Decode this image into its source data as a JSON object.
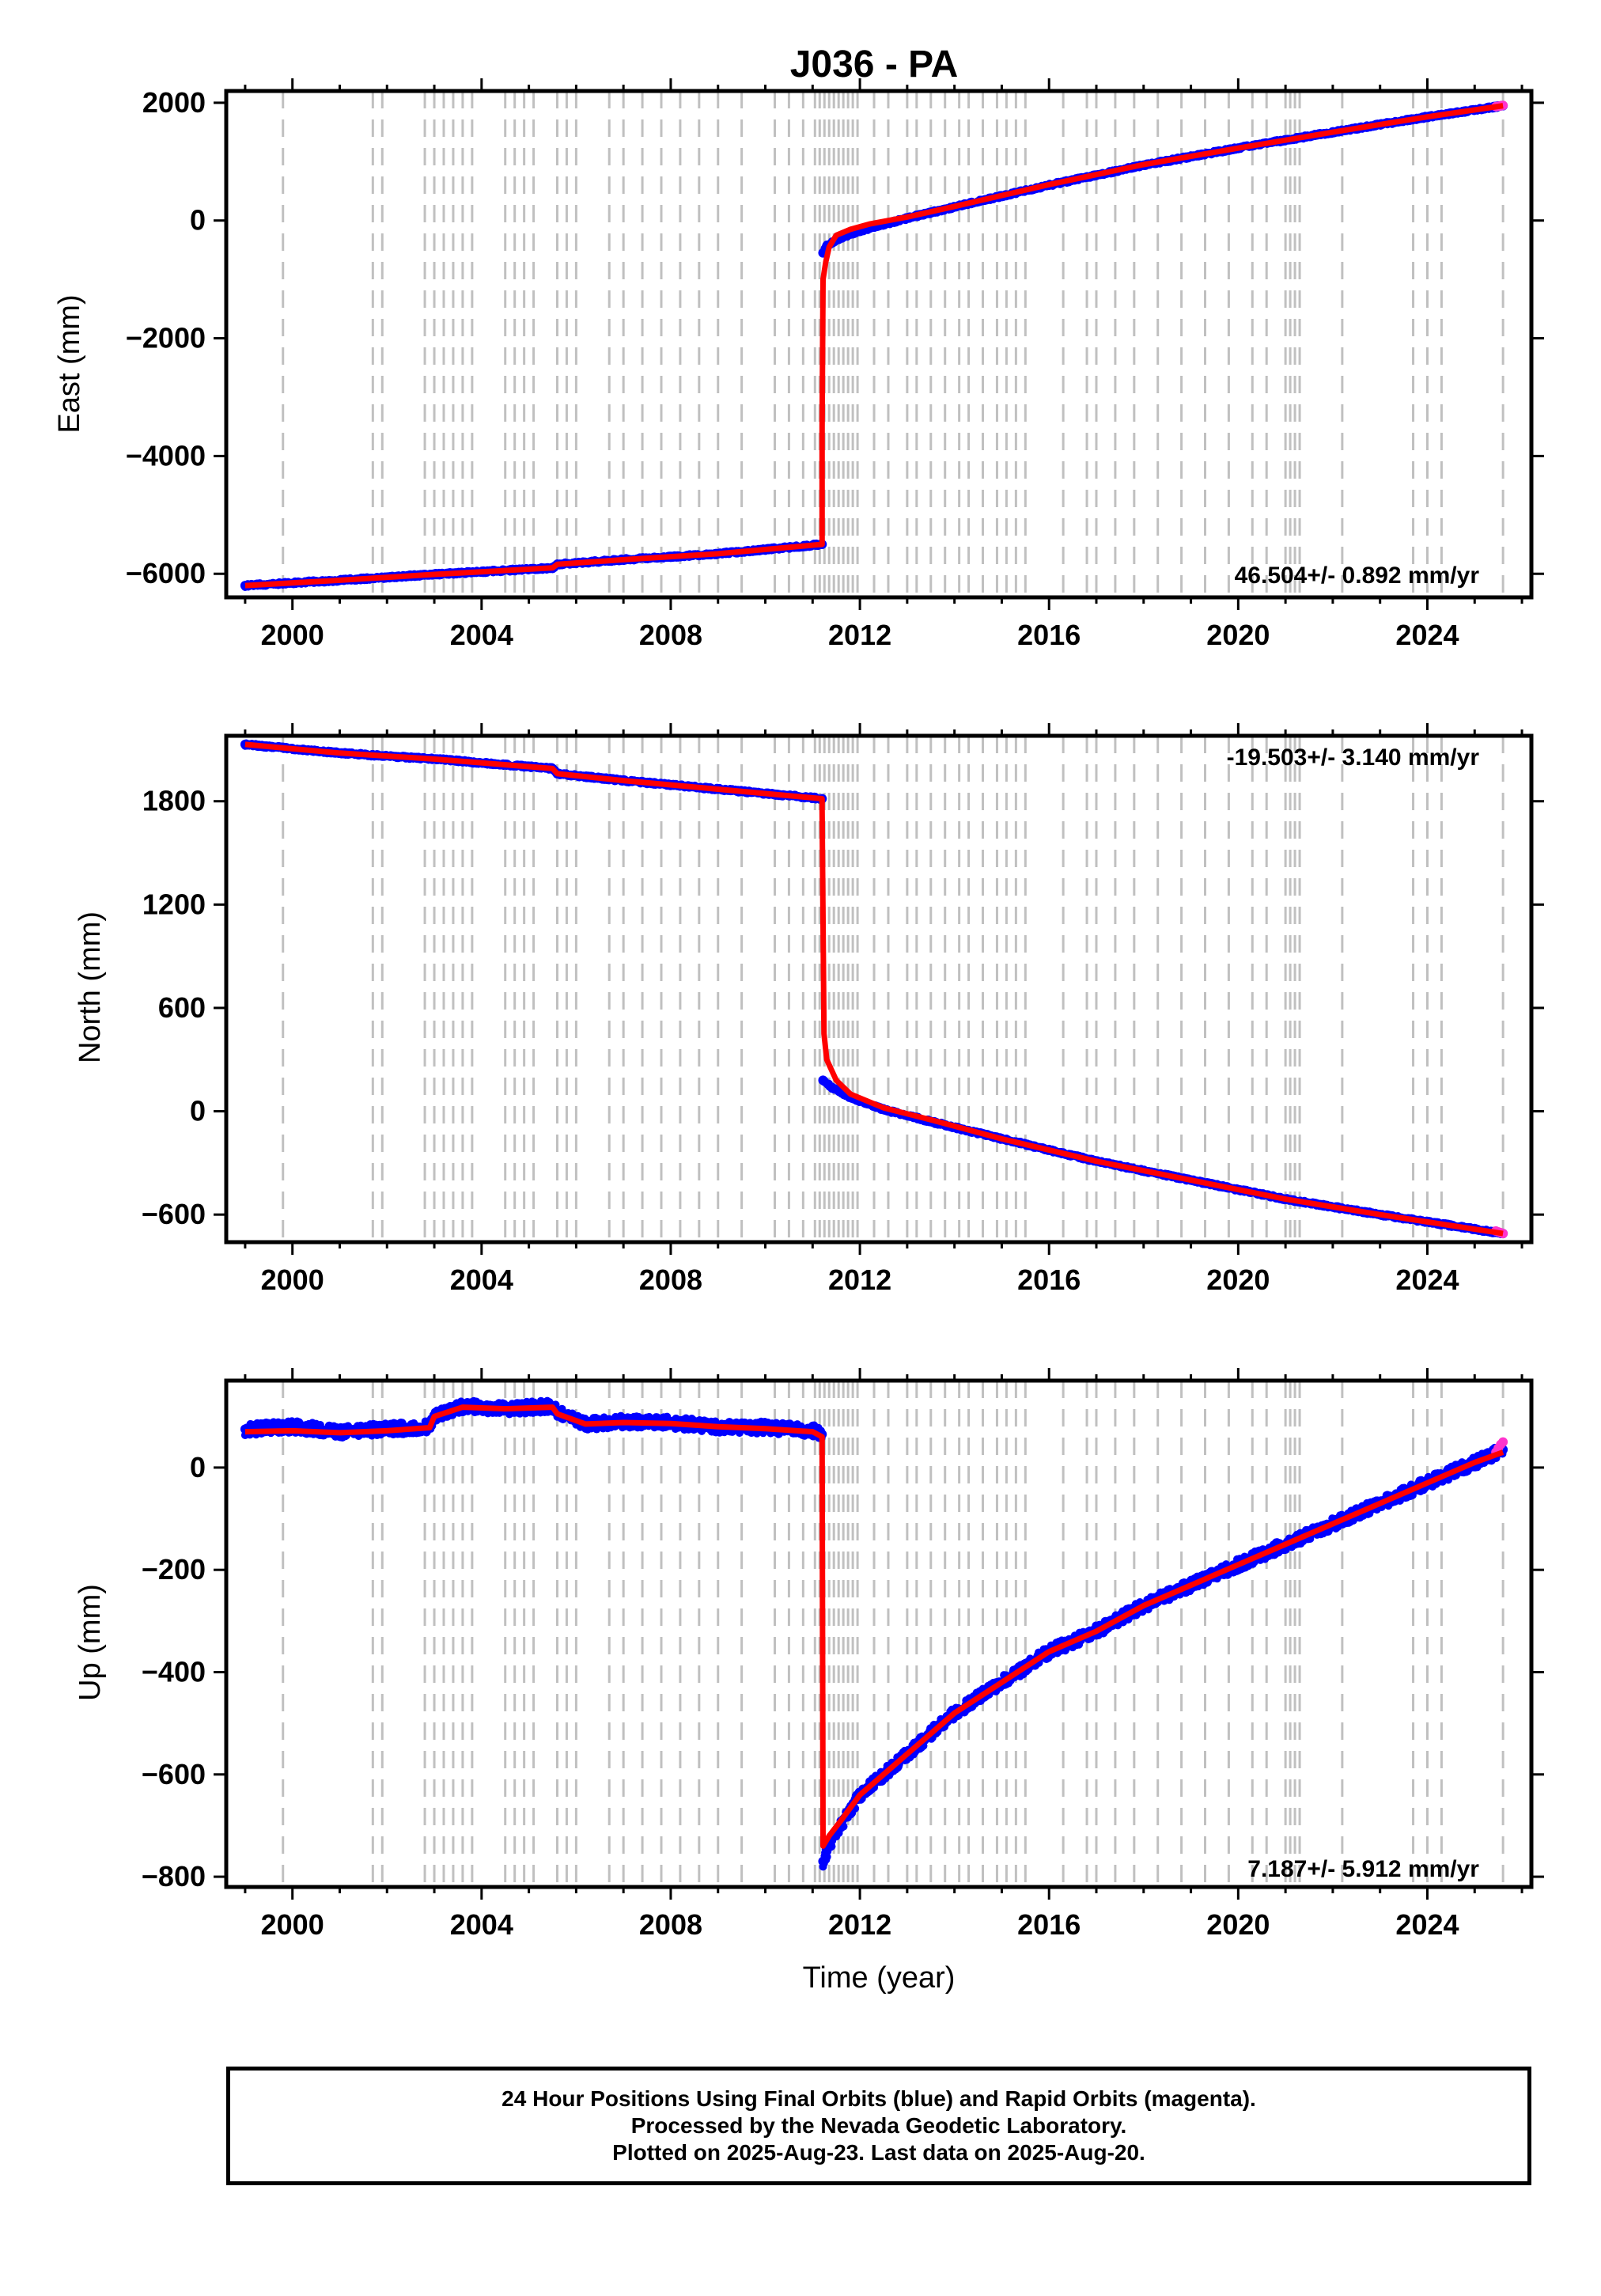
{
  "title": "J036 - PA",
  "xlabel": "Time (year)",
  "colors": {
    "final": "#0000ff",
    "rapid": "#ff33cc",
    "model": "#ff0000",
    "event_lines": "#c0c0c0",
    "axis": "#000000"
  },
  "footer": {
    "line1": "24 Hour Positions Using Final Orbits (blue) and Rapid Orbits (magenta).",
    "line2": "Processed by the Nevada Geodetic Laboratory.",
    "line3": "Plotted on 2025-Aug-23. Last data on 2025-Aug-20."
  },
  "chart_data": [
    {
      "type": "scatter",
      "ylabel": "East (mm)",
      "rate_label": "46.504+/- 0.892 mm/yr",
      "rate_position": "bottom-right",
      "xlim": [
        1998.6,
        2026.2
      ],
      "ylim": [
        -6400,
        2200
      ],
      "xticks": [
        2000,
        2004,
        2008,
        2012,
        2016,
        2020,
        2024
      ],
      "yticks": [
        -6000,
        -4000,
        -2000,
        0,
        2000
      ],
      "ytick_labels": [
        "−6000",
        "−4000",
        "−2000",
        "0",
        "2000"
      ],
      "series": [
        {
          "style": "points",
          "color": "#0000ff",
          "x": [
            1999.0,
            2001.0,
            2003.0,
            2005.5,
            2005.6,
            2007.0,
            2009.0,
            2011.2,
            2011.22,
            2011.3,
            2011.5,
            2011.8,
            2012.2,
            2013.0,
            2014.0,
            2016.0,
            2018.0,
            2020.0,
            2022.0,
            2024.0,
            2025.6
          ],
          "y": [
            -6200,
            -6110,
            -6010,
            -5900,
            -5840,
            -5760,
            -5660,
            -5500,
            -550,
            -430,
            -330,
            -230,
            -130,
            40,
            230,
            600,
            940,
            1230,
            1500,
            1760,
            1950
          ]
        },
        {
          "style": "points",
          "color": "#ff33cc",
          "x": [
            2025.45,
            2025.5,
            2025.55,
            2025.6
          ],
          "y": [
            1935,
            1942,
            1948,
            1955
          ]
        },
        {
          "style": "line",
          "color": "#ff0000",
          "x": [
            1999.0,
            2001.0,
            2003.0,
            2005.5,
            2005.6,
            2007.0,
            2009.0,
            2011.2,
            2011.2,
            2011.22,
            2011.28,
            2011.35,
            2011.5,
            2011.8,
            2012.2,
            2013.0,
            2014.0,
            2016.0,
            2018.0,
            2020.0,
            2022.0,
            2024.0,
            2025.6
          ],
          "y": [
            -6200,
            -6110,
            -6010,
            -5900,
            -5840,
            -5760,
            -5660,
            -5500,
            -3500,
            -1000,
            -700,
            -450,
            -250,
            -150,
            -60,
            60,
            240,
            610,
            950,
            1230,
            1500,
            1760,
            1950
          ]
        }
      ]
    },
    {
      "type": "scatter",
      "ylabel": "North (mm)",
      "rate_label": "-19.503+/- 3.140 mm/yr",
      "rate_position": "top-right",
      "xlim": [
        1998.6,
        2026.2
      ],
      "ylim": [
        -760,
        2180
      ],
      "xticks": [
        2000,
        2004,
        2008,
        2012,
        2016,
        2020,
        2024
      ],
      "yticks": [
        -600,
        0,
        600,
        1200,
        1800
      ],
      "ytick_labels": [
        "−600",
        "0",
        "600",
        "1200",
        "1800"
      ],
      "series": [
        {
          "style": "points",
          "color": "#0000ff",
          "x": [
            1999.0,
            2001.0,
            2003.0,
            2005.5,
            2005.6,
            2007.0,
            2009.0,
            2011.2,
            2011.22,
            2011.4,
            2011.8,
            2012.5,
            2013.5,
            2015.0,
            2017.0,
            2019.0,
            2021.0,
            2023.0,
            2025.6
          ],
          "y": [
            2130,
            2080,
            2045,
            1990,
            1960,
            1920,
            1870,
            1815,
            180,
            140,
            80,
            10,
            -60,
            -160,
            -290,
            -400,
            -510,
            -600,
            -710
          ]
        },
        {
          "style": "points",
          "color": "#ff33cc",
          "x": [
            2025.45,
            2025.5,
            2025.55,
            2025.6
          ],
          "y": [
            -695,
            -700,
            -705,
            -710
          ]
        },
        {
          "style": "line",
          "color": "#ff0000",
          "x": [
            1999.0,
            2001.0,
            2003.0,
            2005.5,
            2005.6,
            2007.0,
            2009.0,
            2011.2,
            2011.2,
            2011.24,
            2011.3,
            2011.5,
            2011.8,
            2012.5,
            2013.5,
            2015.0,
            2017.0,
            2019.0,
            2021.0,
            2023.0,
            2025.6
          ],
          "y": [
            2130,
            2080,
            2045,
            1990,
            1960,
            1920,
            1870,
            1815,
            1750,
            450,
            300,
            180,
            100,
            20,
            -50,
            -160,
            -290,
            -400,
            -510,
            -600,
            -710
          ]
        }
      ]
    },
    {
      "type": "scatter",
      "ylabel": "Up (mm)",
      "rate_label": "7.187+/- 5.912 mm/yr",
      "rate_position": "bottom-right",
      "xlim": [
        1998.6,
        2026.2
      ],
      "ylim": [
        -820,
        170
      ],
      "xticks": [
        2000,
        2004,
        2008,
        2012,
        2016,
        2020,
        2024
      ],
      "yticks": [
        -800,
        -600,
        -400,
        -200,
        0
      ],
      "ytick_labels": [
        "−800",
        "−600",
        "−400",
        "−200",
        "0"
      ],
      "series": [
        {
          "style": "points",
          "color": "#0000ff",
          "x": [
            1999.0,
            2000.0,
            2001.0,
            2002.0,
            2002.9,
            2003.0,
            2003.6,
            2004.5,
            2005.5,
            2005.6,
            2006.2,
            2007.0,
            2008.0,
            2009.0,
            2010.0,
            2011.0,
            2011.2,
            2011.22,
            2011.35,
            2011.6,
            2012.0,
            2012.5,
            2013.0,
            2013.5,
            2014.0,
            2014.5,
            2015.0,
            2016.0,
            2017.0,
            2018.0,
            2019.0,
            2020.0,
            2021.0,
            2022.0,
            2023.0,
            2024.0,
            2025.0,
            2025.6
          ],
          "y": [
            75,
            80,
            70,
            75,
            80,
            100,
            120,
            115,
            120,
            110,
            85,
            90,
            88,
            80,
            78,
            72,
            65,
            -770,
            -740,
            -700,
            -640,
            -600,
            -560,
            -520,
            -480,
            -450,
            -420,
            -360,
            -320,
            -270,
            -230,
            -190,
            -150,
            -110,
            -70,
            -30,
            10,
            35
          ]
        },
        {
          "style": "points",
          "color": "#ff33cc",
          "x": [
            2025.45,
            2025.5,
            2025.55,
            2025.6
          ],
          "y": [
            30,
            38,
            45,
            50
          ]
        },
        {
          "style": "line",
          "color": "#ff0000",
          "x": [
            1999.0,
            2000.0,
            2001.0,
            2002.0,
            2002.9,
            2003.0,
            2003.6,
            2004.5,
            2005.5,
            2005.6,
            2006.2,
            2007.0,
            2008.0,
            2009.0,
            2010.0,
            2011.0,
            2011.2,
            2011.22,
            2011.35,
            2011.6,
            2012.0,
            2012.5,
            2013.0,
            2013.5,
            2014.0,
            2014.5,
            2015.0,
            2016.0,
            2017.0,
            2018.0,
            2019.0,
            2020.0,
            2021.0,
            2022.0,
            2023.0,
            2024.0,
            2025.0,
            2025.6
          ],
          "y": [
            70,
            72,
            68,
            72,
            78,
            100,
            118,
            115,
            118,
            105,
            85,
            88,
            86,
            80,
            76,
            70,
            60,
            -740,
            -720,
            -690,
            -640,
            -600,
            -560,
            -520,
            -480,
            -450,
            -420,
            -360,
            -320,
            -270,
            -230,
            -190,
            -150,
            -110,
            -70,
            -30,
            10,
            30
          ]
        }
      ]
    }
  ],
  "event_lines": [
    1999.8,
    2001.7,
    2001.9,
    2002.8,
    2003.0,
    2003.2,
    2003.4,
    2003.6,
    2003.8,
    2004.5,
    2004.7,
    2004.9,
    2005.1,
    2005.6,
    2005.8,
    2006.0,
    2006.7,
    2007.0,
    2007.4,
    2007.8,
    2008.2,
    2008.6,
    2009.0,
    2009.5,
    2010.2,
    2010.5,
    2010.8,
    2011.05,
    2011.15,
    2011.25,
    2011.35,
    2011.45,
    2011.55,
    2011.65,
    2011.75,
    2011.85,
    2011.95,
    2012.3,
    2012.6,
    2013.0,
    2013.2,
    2013.5,
    2013.8,
    2014.1,
    2014.3,
    2014.6,
    2014.9,
    2015.1,
    2015.3,
    2015.5,
    2016.3,
    2016.8,
    2017.0,
    2017.4,
    2017.8,
    2018.3,
    2018.8,
    2019.3,
    2019.8,
    2020.3,
    2020.6,
    2021.0,
    2021.1,
    2021.2,
    2021.3,
    2022.2,
    2023.7,
    2024.0,
    2024.3,
    2025.6
  ]
}
